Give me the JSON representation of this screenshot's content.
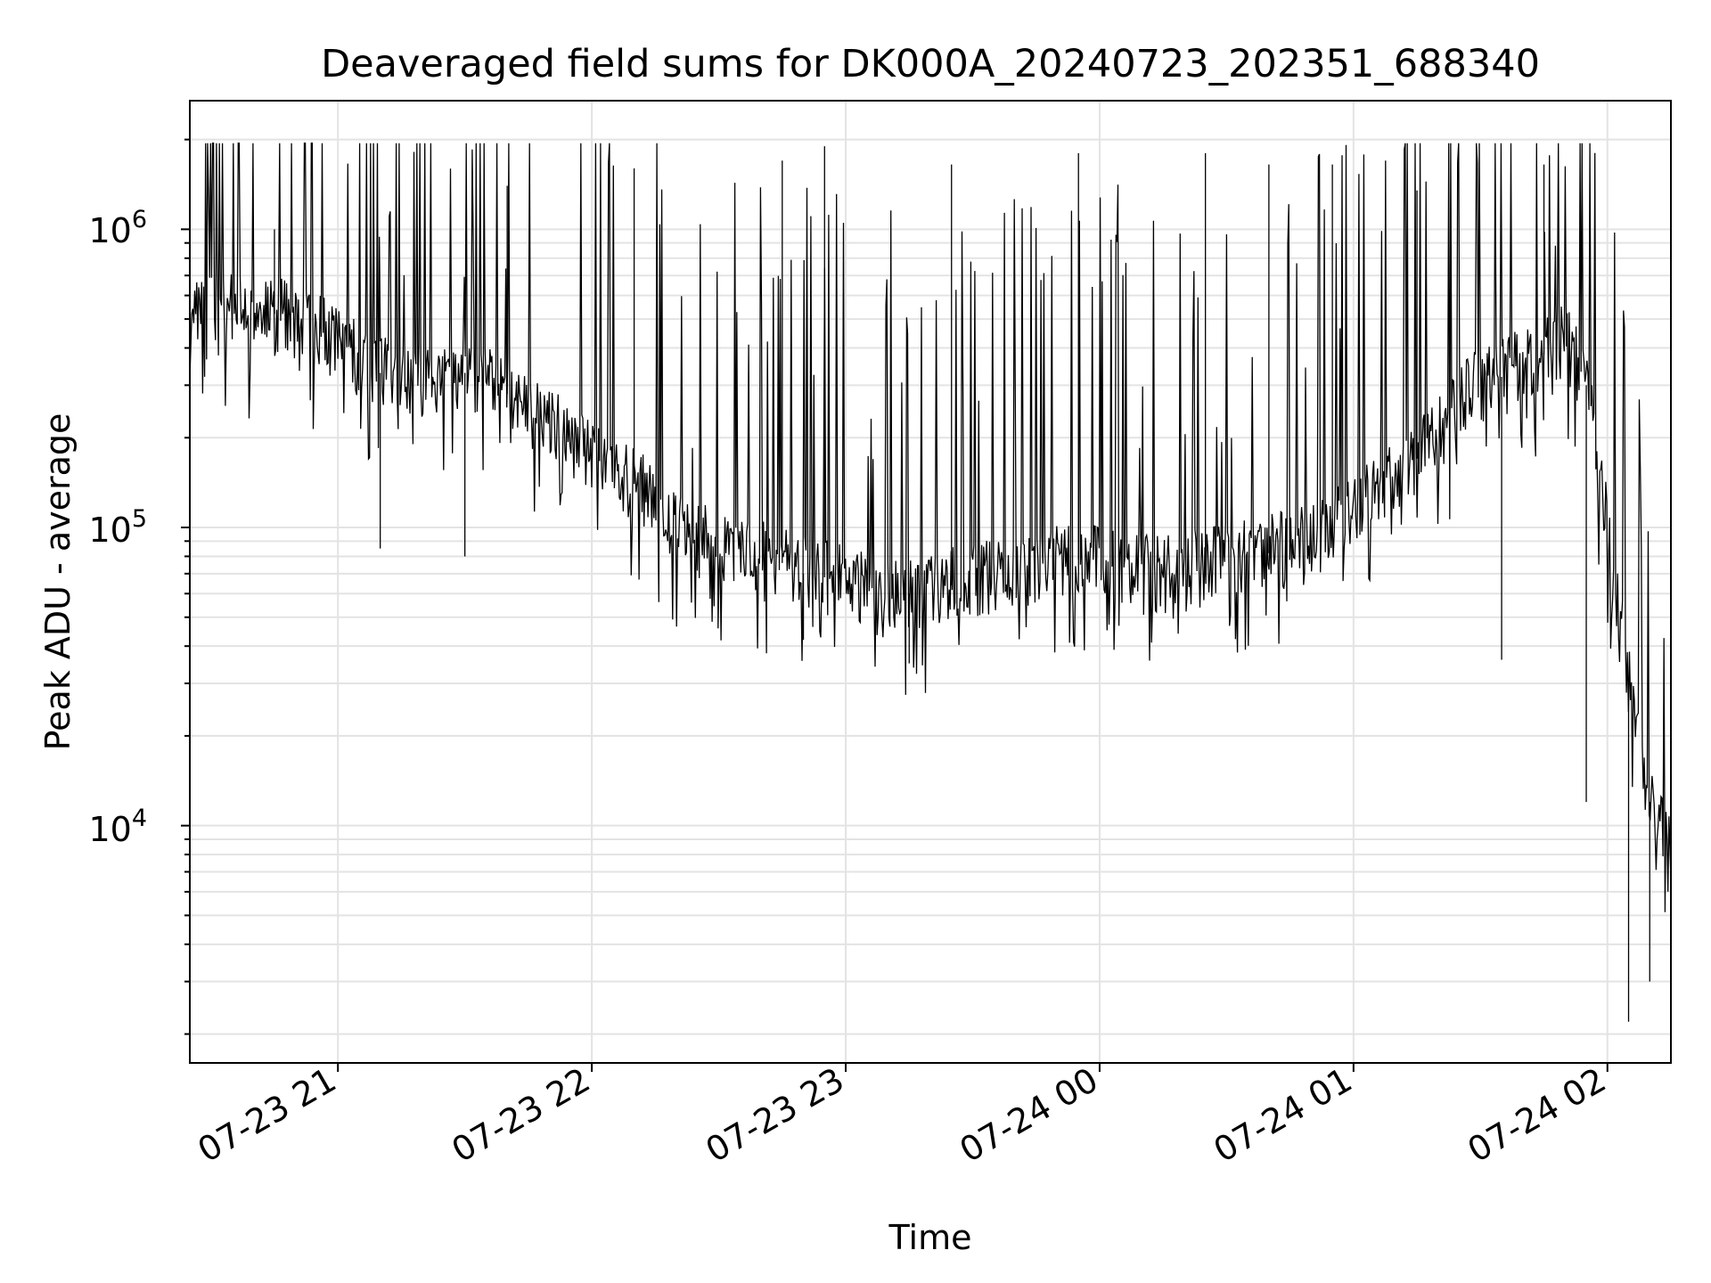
{
  "chart_data": {
    "type": "line",
    "title": "Deaveraged field sums for DK000A_20240723_202351_688340",
    "xlabel": "Time",
    "ylabel": "Peak ADU - average",
    "y_scale": "log",
    "grid": true,
    "x_range": [
      "2024-07-23 20:25",
      "2024-07-24 02:15"
    ],
    "ylim": [
      1600,
      2700000
    ],
    "x_tick_labels": [
      "07-23 21",
      "07-23 22",
      "07-23 23",
      "07-24 00",
      "07-24 01",
      "07-24 02"
    ],
    "x_ticks": [
      "2024-07-23 21:00",
      "2024-07-23 22:00",
      "2024-07-23 23:00",
      "2024-07-24 00:00",
      "2024-07-24 01:00",
      "2024-07-24 02:00"
    ],
    "y_ticks": [
      {
        "base": "10",
        "exp": "4",
        "value": 10000
      },
      {
        "base": "10",
        "exp": "5",
        "value": 100000
      },
      {
        "base": "10",
        "exp": "6",
        "value": 1000000
      }
    ],
    "line_color": "#000000",
    "series": [
      {
        "x": [
          "2024-07-23 20:25",
          "2024-07-23 20:30",
          "2024-07-23 20:35",
          "2024-07-23 20:40",
          "2024-07-23 20:45",
          "2024-07-23 20:50",
          "2024-07-23 20:55",
          "2024-07-23 21:00",
          "2024-07-23 21:05",
          "2024-07-23 21:10",
          "2024-07-23 21:15",
          "2024-07-23 21:20",
          "2024-07-23 21:25",
          "2024-07-23 21:30",
          "2024-07-23 21:35",
          "2024-07-23 21:40",
          "2024-07-23 21:45",
          "2024-07-23 21:50",
          "2024-07-23 21:55",
          "2024-07-23 22:00",
          "2024-07-23 22:05",
          "2024-07-23 22:10",
          "2024-07-23 22:15",
          "2024-07-23 22:20",
          "2024-07-23 22:25",
          "2024-07-23 22:30",
          "2024-07-23 22:35",
          "2024-07-23 22:40",
          "2024-07-23 22:45",
          "2024-07-23 22:50",
          "2024-07-23 22:55",
          "2024-07-23 23:00",
          "2024-07-23 23:05",
          "2024-07-23 23:10",
          "2024-07-23 23:15",
          "2024-07-23 23:20",
          "2024-07-23 23:25",
          "2024-07-23 23:30",
          "2024-07-23 23:35",
          "2024-07-23 23:40",
          "2024-07-23 23:45",
          "2024-07-23 23:50",
          "2024-07-23 23:55",
          "2024-07-24 00:00",
          "2024-07-24 00:05",
          "2024-07-24 00:10",
          "2024-07-24 00:15",
          "2024-07-24 00:20",
          "2024-07-24 00:25",
          "2024-07-24 00:30",
          "2024-07-24 00:35",
          "2024-07-24 00:40",
          "2024-07-24 00:45",
          "2024-07-24 00:50",
          "2024-07-24 00:55",
          "2024-07-24 01:00",
          "2024-07-24 01:05",
          "2024-07-24 01:10",
          "2024-07-24 01:15",
          "2024-07-24 01:20",
          "2024-07-24 01:25",
          "2024-07-24 01:30",
          "2024-07-24 01:35",
          "2024-07-24 01:40",
          "2024-07-24 01:45",
          "2024-07-24 01:50",
          "2024-07-24 01:55",
          "2024-07-24 02:00",
          "2024-07-24 02:05",
          "2024-07-24 02:10",
          "2024-07-24 02:15"
        ],
        "y": [
          520000,
          560000,
          540000,
          500000,
          520000,
          480000,
          470000,
          400000,
          380000,
          330000,
          300000,
          310000,
          300000,
          330000,
          300000,
          280000,
          250000,
          230000,
          200000,
          170000,
          150000,
          140000,
          120000,
          100000,
          90000,
          85000,
          80000,
          78000,
          76000,
          70000,
          68000,
          65000,
          62000,
          60000,
          60000,
          62000,
          64000,
          66000,
          68000,
          70000,
          72000,
          75000,
          78000,
          74000,
          72000,
          70000,
          70000,
          72000,
          75000,
          78000,
          80000,
          82000,
          85000,
          90000,
          100000,
          115000,
          130000,
          150000,
          170000,
          200000,
          260000,
          300000,
          320000,
          350000,
          380000,
          420000,
          300000,
          100000,
          30000,
          12000,
          8000
        ],
        "peaks": [
          {
            "x": "2024-07-23 20:45",
            "y": 1000000
          },
          {
            "x": "2024-07-23 21:40",
            "y": 1400000
          },
          {
            "x": "2024-07-23 22:10",
            "y": 1600000
          },
          {
            "x": "2024-07-23 22:45",
            "y": 1700000
          },
          {
            "x": "2024-07-23 22:55",
            "y": 1900000
          },
          {
            "x": "2024-07-23 23:25",
            "y": 1650000
          },
          {
            "x": "2024-07-23 23:55",
            "y": 1800000
          },
          {
            "x": "2024-07-24 00:25",
            "y": 1800000
          },
          {
            "x": "2024-07-24 00:40",
            "y": 1650000
          },
          {
            "x": "2024-07-24 00:55",
            "y": 1650000
          },
          {
            "x": "2024-07-24 01:15",
            "y": 1350000
          },
          {
            "x": "2024-07-24 01:45",
            "y": 1650000
          }
        ],
        "troughs": [
          {
            "x": "2024-07-23 21:10",
            "y": 85000
          },
          {
            "x": "2024-07-23 21:30",
            "y": 80000
          },
          {
            "x": "2024-07-23 22:50",
            "y": 42000
          },
          {
            "x": "2024-07-23 23:15",
            "y": 35000
          },
          {
            "x": "2024-07-24 01:35",
            "y": 36000
          },
          {
            "x": "2024-07-24 01:55",
            "y": 12000
          },
          {
            "x": "2024-07-24 02:05",
            "y": 2200
          },
          {
            "x": "2024-07-24 02:10",
            "y": 3000
          }
        ]
      }
    ]
  }
}
